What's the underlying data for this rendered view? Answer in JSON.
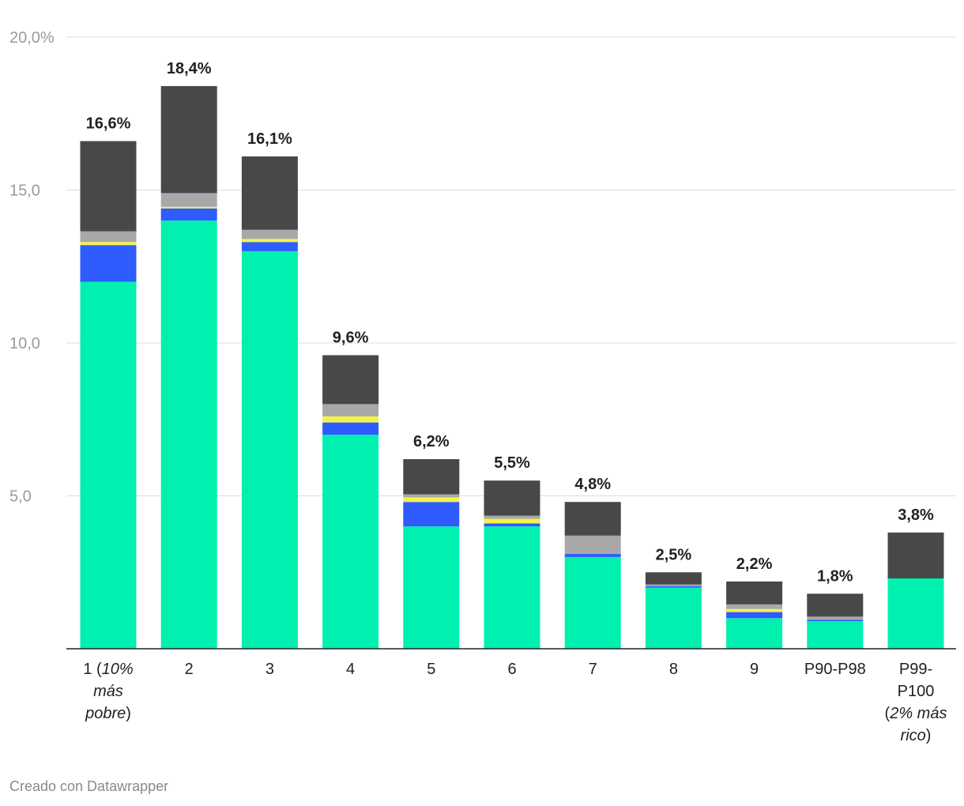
{
  "chart_data": {
    "type": "bar",
    "stacked": true,
    "ylim": [
      0,
      20
    ],
    "y_ticks": [
      {
        "value": 5,
        "label": "5,0"
      },
      {
        "value": 10,
        "label": "10,0"
      },
      {
        "value": 15,
        "label": "15,0"
      },
      {
        "value": 20,
        "label": "20,0%"
      }
    ],
    "grid": true,
    "categories": [
      {
        "lines": [
          [
            {
              "t": "1 (",
              "i": false
            },
            {
              "t": "10%",
              "i": true
            }
          ],
          [
            {
              "t": "más",
              "i": true
            }
          ],
          [
            {
              "t": "pobre",
              "i": true
            },
            {
              "t": ")",
              "i": false
            }
          ]
        ]
      },
      {
        "lines": [
          [
            {
              "t": "2",
              "i": false
            }
          ]
        ]
      },
      {
        "lines": [
          [
            {
              "t": "3",
              "i": false
            }
          ]
        ]
      },
      {
        "lines": [
          [
            {
              "t": "4",
              "i": false
            }
          ]
        ]
      },
      {
        "lines": [
          [
            {
              "t": "5",
              "i": false
            }
          ]
        ]
      },
      {
        "lines": [
          [
            {
              "t": "6",
              "i": false
            }
          ]
        ]
      },
      {
        "lines": [
          [
            {
              "t": "7",
              "i": false
            }
          ]
        ]
      },
      {
        "lines": [
          [
            {
              "t": "8",
              "i": false
            }
          ]
        ]
      },
      {
        "lines": [
          [
            {
              "t": "9",
              "i": false
            }
          ]
        ]
      },
      {
        "lines": [
          [
            {
              "t": "P90-P98",
              "i": false
            }
          ]
        ]
      },
      {
        "lines": [
          [
            {
              "t": "P99-",
              "i": false
            }
          ],
          [
            {
              "t": "P100",
              "i": false
            }
          ],
          [
            {
              "t": "(",
              "i": false
            },
            {
              "t": "2% más",
              "i": true
            }
          ],
          [
            {
              "t": "rico",
              "i": true
            },
            {
              "t": ")",
              "i": false
            }
          ]
        ]
      }
    ],
    "totals": [
      "16,6%",
      "18,4%",
      "16,1%",
      "9,6%",
      "6,2%",
      "5,5%",
      "4,8%",
      "2,5%",
      "2,2%",
      "1,8%",
      "3,8%"
    ],
    "series": [
      {
        "color": "#00f0b0",
        "values": [
          12.0,
          14.0,
          13.0,
          7.0,
          4.0,
          4.0,
          3.0,
          2.0,
          1.0,
          0.9,
          2.3
        ]
      },
      {
        "color": "#2e5cff",
        "values": [
          1.2,
          0.4,
          0.3,
          0.4,
          0.8,
          0.1,
          0.1,
          0.05,
          0.2,
          0.05,
          0.0
        ]
      },
      {
        "color": "#f2f24a",
        "values": [
          0.1,
          0.05,
          0.1,
          0.2,
          0.15,
          0.15,
          0.0,
          0.0,
          0.1,
          0.0,
          0.0
        ]
      },
      {
        "color": "#a8a8a8",
        "values": [
          0.35,
          0.45,
          0.3,
          0.4,
          0.1,
          0.1,
          0.6,
          0.05,
          0.15,
          0.1,
          0.0
        ]
      },
      {
        "color": "#484848",
        "values": [
          2.95,
          3.5,
          2.4,
          1.6,
          1.15,
          1.15,
          1.1,
          0.4,
          0.75,
          0.75,
          1.5
        ]
      }
    ]
  },
  "footer": {
    "credit": "Creado con Datawrapper"
  }
}
